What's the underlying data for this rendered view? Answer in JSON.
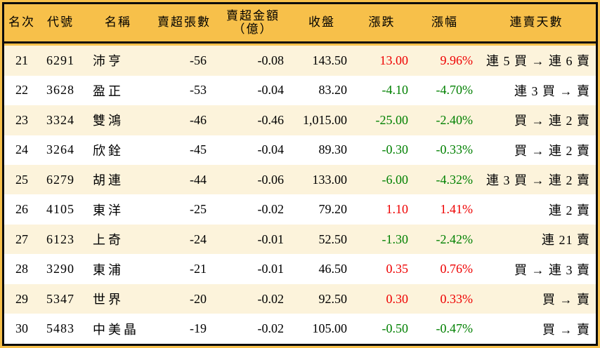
{
  "colors": {
    "header_bg": "#F7C04A",
    "row_alt_bg": "#FCF3DB",
    "row_bg": "#FFFFFF",
    "up": "#EE0000",
    "down": "#008000",
    "border": "#0B0B0B",
    "text": "#000000"
  },
  "table": {
    "columns": [
      {
        "key": "rank",
        "label": "名次"
      },
      {
        "key": "code",
        "label": "代號"
      },
      {
        "key": "name",
        "label": "名稱"
      },
      {
        "key": "sell_volume",
        "label": "賣超張數"
      },
      {
        "key": "sell_amount",
        "label": "賣超金額",
        "label2": "（億）"
      },
      {
        "key": "close",
        "label": "收盤"
      },
      {
        "key": "change",
        "label": "漲跌"
      },
      {
        "key": "change_pct",
        "label": "漲幅"
      },
      {
        "key": "streak",
        "label": "連賣天數"
      }
    ],
    "rows": [
      {
        "rank": "21",
        "code": "6291",
        "name": "沛亨",
        "sell_volume": "-56",
        "sell_amount": "-0.08",
        "close": "143.50",
        "change": "13.00",
        "change_pct": "9.96%",
        "dir": "up",
        "streak": "連 5 買 → 連 6 賣"
      },
      {
        "rank": "22",
        "code": "3628",
        "name": "盈正",
        "sell_volume": "-53",
        "sell_amount": "-0.04",
        "close": "83.20",
        "change": "-4.10",
        "change_pct": "-4.70%",
        "dir": "down",
        "streak": "連 3 買 → 賣"
      },
      {
        "rank": "23",
        "code": "3324",
        "name": "雙鴻",
        "sell_volume": "-46",
        "sell_amount": "-0.46",
        "close": "1,015.00",
        "change": "-25.00",
        "change_pct": "-2.40%",
        "dir": "down",
        "streak": "買 → 連 2 賣"
      },
      {
        "rank": "24",
        "code": "3264",
        "name": "欣銓",
        "sell_volume": "-45",
        "sell_amount": "-0.04",
        "close": "89.30",
        "change": "-0.30",
        "change_pct": "-0.33%",
        "dir": "down",
        "streak": "買 → 連 2 賣"
      },
      {
        "rank": "25",
        "code": "6279",
        "name": "胡連",
        "sell_volume": "-44",
        "sell_amount": "-0.06",
        "close": "133.00",
        "change": "-6.00",
        "change_pct": "-4.32%",
        "dir": "down",
        "streak": "連 3 買 → 連 2 賣"
      },
      {
        "rank": "26",
        "code": "4105",
        "name": "東洋",
        "sell_volume": "-25",
        "sell_amount": "-0.02",
        "close": "79.20",
        "change": "1.10",
        "change_pct": "1.41%",
        "dir": "up",
        "streak": "連 2 賣"
      },
      {
        "rank": "27",
        "code": "6123",
        "name": "上奇",
        "sell_volume": "-24",
        "sell_amount": "-0.01",
        "close": "52.50",
        "change": "-1.30",
        "change_pct": "-2.42%",
        "dir": "down",
        "streak": "連 21 賣"
      },
      {
        "rank": "28",
        "code": "3290",
        "name": "東浦",
        "sell_volume": "-21",
        "sell_amount": "-0.01",
        "close": "46.50",
        "change": "0.35",
        "change_pct": "0.76%",
        "dir": "up",
        "streak": "買 → 連 3 賣"
      },
      {
        "rank": "29",
        "code": "5347",
        "name": "世界",
        "sell_volume": "-20",
        "sell_amount": "-0.02",
        "close": "92.50",
        "change": "0.30",
        "change_pct": "0.33%",
        "dir": "up",
        "streak": "買 → 賣"
      },
      {
        "rank": "30",
        "code": "5483",
        "name": "中美晶",
        "sell_volume": "-19",
        "sell_amount": "-0.02",
        "close": "105.00",
        "change": "-0.50",
        "change_pct": "-0.47%",
        "dir": "down",
        "streak": "買 → 賣"
      }
    ]
  },
  "chart_data": {
    "type": "table",
    "title": "",
    "columns": [
      "名次",
      "代號",
      "名稱",
      "賣超張數",
      "賣超金額（億）",
      "收盤",
      "漲跌",
      "漲幅",
      "連賣天數"
    ],
    "rows": [
      [
        "21",
        "6291",
        "沛亨",
        "-56",
        "-0.08",
        "143.50",
        "13.00",
        "9.96%",
        "連 5 買 → 連 6 賣"
      ],
      [
        "22",
        "3628",
        "盈正",
        "-53",
        "-0.04",
        "83.20",
        "-4.10",
        "-4.70%",
        "連 3 買 → 賣"
      ],
      [
        "23",
        "3324",
        "雙鴻",
        "-46",
        "-0.46",
        "1,015.00",
        "-25.00",
        "-2.40%",
        "買 → 連 2 賣"
      ],
      [
        "24",
        "3264",
        "欣銓",
        "-45",
        "-0.04",
        "89.30",
        "-0.30",
        "-0.33%",
        "買 → 連 2 賣"
      ],
      [
        "25",
        "6279",
        "胡連",
        "-44",
        "-0.06",
        "133.00",
        "-6.00",
        "-4.32%",
        "連 3 買 → 連 2 賣"
      ],
      [
        "26",
        "4105",
        "東洋",
        "-25",
        "-0.02",
        "79.20",
        "1.10",
        "1.41%",
        "連 2 賣"
      ],
      [
        "27",
        "6123",
        "上奇",
        "-24",
        "-0.01",
        "52.50",
        "-1.30",
        "-2.42%",
        "連 21 賣"
      ],
      [
        "28",
        "3290",
        "東浦",
        "-21",
        "-0.01",
        "46.50",
        "0.35",
        "0.76%",
        "買 → 連 3 賣"
      ],
      [
        "29",
        "5347",
        "世界",
        "-20",
        "-0.02",
        "92.50",
        "0.30",
        "0.33%",
        "買 → 賣"
      ],
      [
        "30",
        "5483",
        "中美晶",
        "-19",
        "-0.02",
        "105.00",
        "-0.50",
        "-0.47%",
        "買 → 賣"
      ]
    ]
  }
}
